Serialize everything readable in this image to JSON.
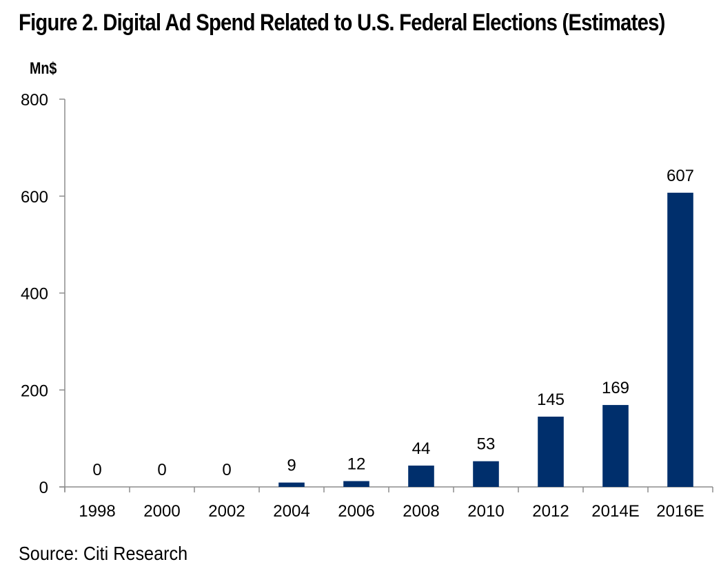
{
  "chart_data": {
    "type": "bar",
    "title": "Figure 2. Digital Ad Spend Related to U.S. Federal Elections (Estimates)",
    "xlabel": "",
    "ylabel": "Mn$",
    "categories": [
      "1998",
      "2000",
      "2002",
      "2004",
      "2006",
      "2008",
      "2010",
      "2012",
      "2014E",
      "2016E"
    ],
    "values": [
      0,
      0,
      0,
      9,
      12,
      44,
      53,
      145,
      169,
      607
    ],
    "data_labels": [
      "0",
      "0",
      "0",
      "9",
      "12",
      "44",
      "53",
      "145",
      "169",
      "607"
    ],
    "ylim": [
      0,
      800
    ],
    "yticks": [
      0,
      200,
      400,
      600,
      800
    ],
    "grid": false,
    "legend": "none",
    "bar_color": "#002F6C",
    "axis_color": "#8C8C8C",
    "source": "Source: Citi Research"
  }
}
